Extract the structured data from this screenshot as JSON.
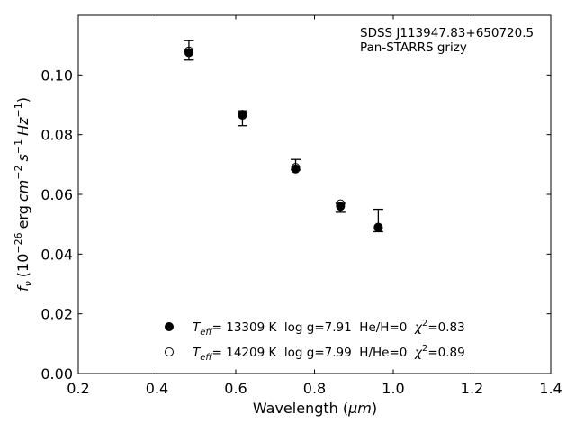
{
  "chart_data": {
    "type": "scatter",
    "xlabel_prefix": "Wavelength (",
    "xlabel_unit": "μm",
    "xlabel_suffix": ")",
    "ylabel": {
      "symbol": "f",
      "symbol_sub": "ν",
      "open": "(10",
      "exp1": "−26",
      "erg": "erg",
      "cm": "cm",
      "exp2": "−2",
      "s": "s",
      "exp3": "−1",
      "hz": "Hz",
      "exp4": "−1",
      "close": ")"
    },
    "xlim": [
      0.2,
      1.4
    ],
    "ylim": [
      0.0,
      0.12
    ],
    "x_ticks": [
      0.2,
      0.4,
      0.6,
      0.8,
      1.0,
      1.2,
      1.4
    ],
    "x_tick_labels": [
      "0.2",
      "0.4",
      "0.6",
      "0.8",
      "1.0",
      "1.2",
      "1.4"
    ],
    "y_ticks": [
      0.0,
      0.02,
      0.04,
      0.06,
      0.08,
      0.1
    ],
    "y_tick_labels": [
      "0.00",
      "0.02",
      "0.04",
      "0.06",
      "0.08",
      "0.10"
    ],
    "annotations": [
      "SDSS J113947.83+650720.5",
      "Pan-STARRS grizy"
    ],
    "observed": {
      "x": [
        0.481,
        0.617,
        0.752,
        0.866,
        0.962
      ],
      "y": [
        0.1085,
        0.0855,
        0.07,
        0.0555,
        0.051
      ],
      "yerr_low": [
        0.0035,
        0.0025,
        0.0018,
        0.0015,
        0.0035
      ],
      "yerr_high": [
        0.003,
        0.0025,
        0.0017,
        0.0015,
        0.004
      ]
    },
    "series": [
      {
        "marker": "filled-circle",
        "color": "#000000",
        "x": [
          0.481,
          0.617,
          0.752,
          0.866,
          0.962
        ],
        "y": [
          0.1075,
          0.0865,
          0.0685,
          0.056,
          0.0488
        ],
        "legend": {
          "t": "T",
          "t_sub": "eff",
          "text": "= 13309 K  log g=7.91  He/H=0  ",
          "chi": "χ",
          "chi_sup": "2",
          "chi_val": "=0.83"
        }
      },
      {
        "marker": "open-circle",
        "color": "#000000",
        "x": [
          0.481,
          0.617,
          0.752,
          0.866,
          0.962
        ],
        "y": [
          0.108,
          0.0868,
          0.069,
          0.0568,
          0.049
        ],
        "legend": {
          "t": "T",
          "t_sub": "eff",
          "text": "= 14209 K  log g=7.99  H/He=0  ",
          "chi": "χ",
          "chi_sup": "2",
          "chi_val": "=0.89"
        }
      }
    ],
    "grid": false,
    "legend_position": "lower-center"
  }
}
